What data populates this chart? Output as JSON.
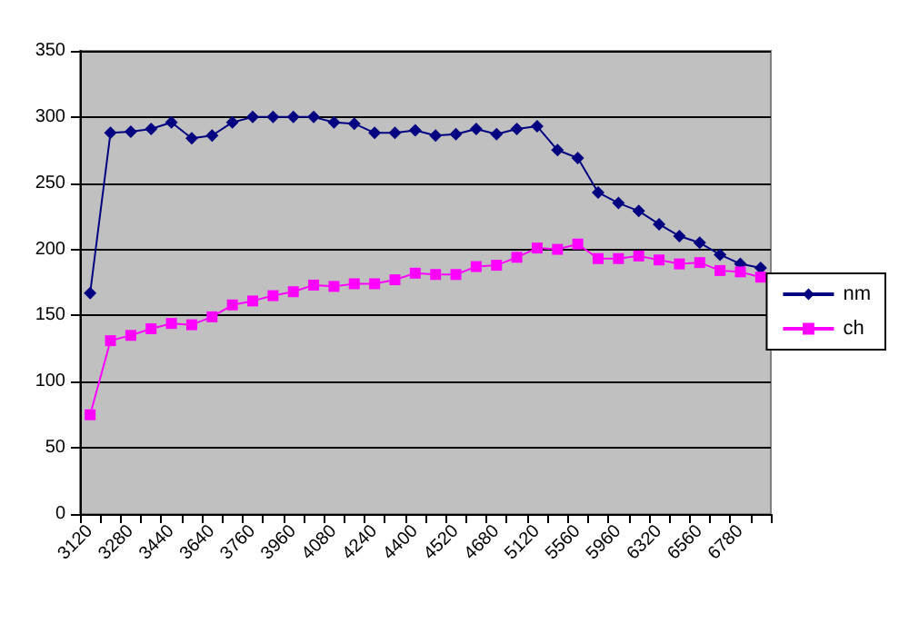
{
  "chart_data": {
    "type": "line",
    "categories": [
      "3120",
      null,
      "3280",
      null,
      "3440",
      null,
      "3640",
      null,
      "3760",
      null,
      "3960",
      null,
      "4080",
      null,
      "4240",
      null,
      "4400",
      null,
      "4520",
      null,
      "4680",
      null,
      "5120",
      null,
      "5560",
      null,
      "5960",
      null,
      "6320",
      null,
      "6560",
      null,
      "6780",
      null
    ],
    "series": [
      {
        "name": "nm",
        "color": "#000080",
        "marker": "diamond",
        "values": [
          167,
          288,
          289,
          291,
          296,
          284,
          286,
          296,
          300,
          300,
          300,
          300,
          296,
          295,
          288,
          288,
          290,
          286,
          287,
          291,
          287,
          291,
          293,
          275,
          269,
          243,
          235,
          229,
          219,
          210,
          205,
          196,
          189,
          186
        ]
      },
      {
        "name": "ch",
        "color": "#ff00ff",
        "marker": "square",
        "values": [
          75,
          131,
          135,
          140,
          144,
          143,
          149,
          158,
          161,
          165,
          168,
          173,
          172,
          174,
          174,
          177,
          182,
          181,
          181,
          187,
          188,
          194,
          201,
          200,
          204,
          193,
          193,
          195,
          192,
          189,
          190,
          184,
          183,
          179
        ]
      }
    ],
    "ylim": [
      0,
      350
    ],
    "yticks": [
      0,
      50,
      100,
      150,
      200,
      250,
      300,
      350
    ],
    "grid": "y",
    "legend": "right",
    "line_style": "solid"
  }
}
